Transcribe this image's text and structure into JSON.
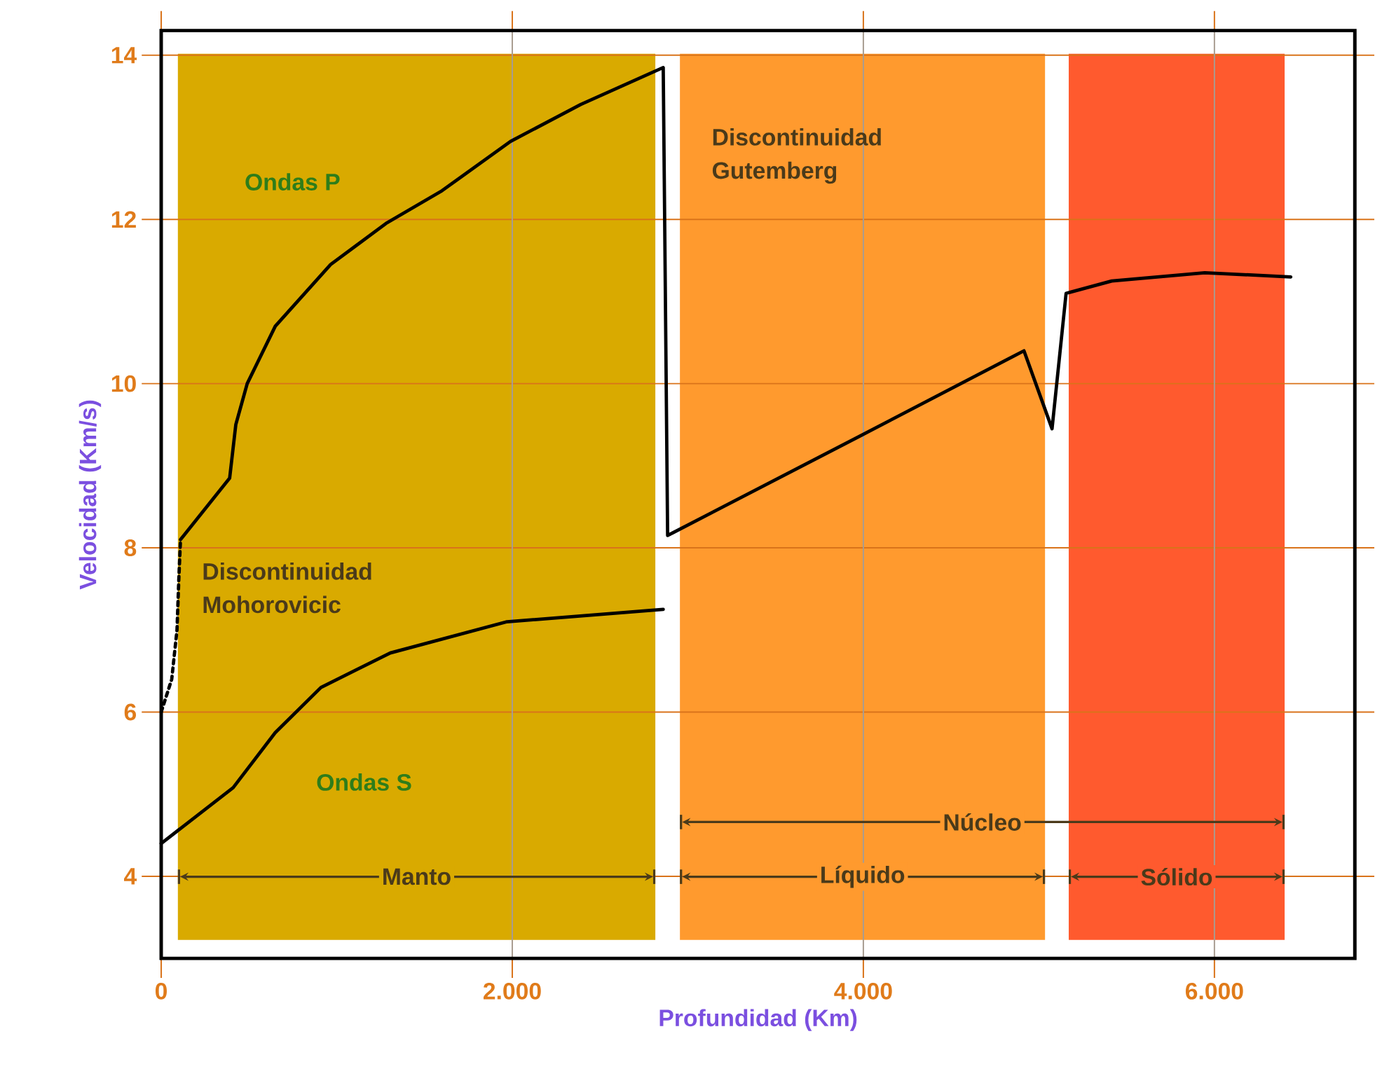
{
  "chart_data": {
    "type": "line",
    "xlabel": "Profundidad (Km)",
    "ylabel": "Velocidad (Km/s)",
    "xlim": [
      0,
      6800
    ],
    "ylim": [
      3,
      14.3
    ],
    "xticks": [
      {
        "value": 0,
        "label": "0"
      },
      {
        "value": 2000,
        "label": "2.000"
      },
      {
        "value": 4000,
        "label": "4.000"
      },
      {
        "value": 6000,
        "label": "6.000"
      }
    ],
    "yticks": [
      4,
      6,
      8,
      10,
      12,
      14
    ],
    "grid": true,
    "series": [
      {
        "name": "Ondas P",
        "color": "#000000",
        "x": [
          110,
          390,
          425,
          490,
          650,
          965,
          1280,
          1600,
          1990,
          2390,
          2860,
          2885,
          3970,
          4915,
          5075,
          5155,
          5415,
          5945,
          6435
        ],
        "values": [
          8.1,
          8.85,
          9.5,
          10.0,
          10.7,
          11.45,
          11.95,
          12.35,
          12.95,
          13.4,
          13.85,
          8.15,
          9.35,
          10.4,
          9.45,
          11.1,
          11.25,
          11.35,
          11.3
        ]
      },
      {
        "color": "#000000",
        "line_style": "dashed",
        "x": [
          0,
          60,
          90,
          100,
          110
        ],
        "values": [
          6.0,
          6.4,
          7.0,
          7.6,
          8.1
        ]
      },
      {
        "name": "Ondas S",
        "color": "#000000",
        "x": [
          0,
          410,
          650,
          910,
          1305,
          1970,
          2860
        ],
        "values": [
          4.4,
          5.08,
          5.75,
          6.3,
          6.72,
          7.1,
          7.25
        ]
      }
    ],
    "bands": [
      {
        "axis": "x",
        "from": 95,
        "to": 2815,
        "label": "Manto",
        "color": "#d9aa00"
      },
      {
        "axis": "x",
        "from": 2955,
        "to": 5035,
        "label": "Líquido",
        "color": "#ff9a2e"
      },
      {
        "axis": "x",
        "from": 5170,
        "to": 6400,
        "label": "Sólido",
        "color": "#ff5a2e"
      }
    ],
    "annotations": [
      "Discontinuidad Gutemberg",
      "Discontinuidad Mohorovicic",
      "Núcleo"
    ]
  }
}
